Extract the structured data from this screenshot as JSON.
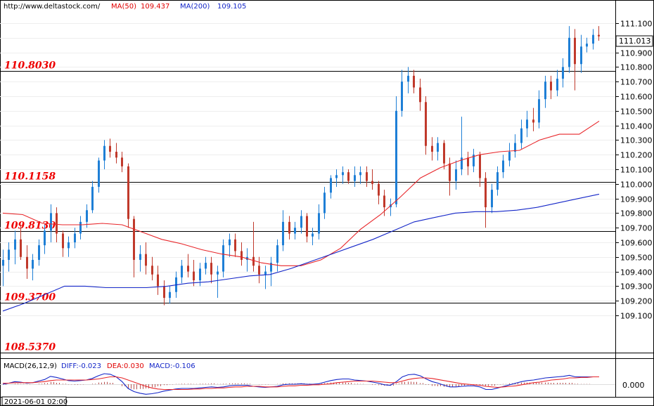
{
  "header": {
    "url": "http://www.deltastock.com/",
    "ma50_label": "MA(50)",
    "ma50_value": "109.437",
    "ma200_label": "MA(200)",
    "ma200_value": "109.105"
  },
  "colors": {
    "up": "#1e7fd6",
    "down": "#c0392b",
    "ma50": "#e8262a",
    "ma200": "#1426c8",
    "level_text": "#ee0000",
    "macd_hist": "#b85050"
  },
  "chart_data": [
    {
      "type": "candlestick",
      "title": "",
      "ylim": [
        109.03,
        111.17
      ],
      "yticks": [
        "111.100",
        "111.000",
        "110.900",
        "110.800",
        "110.700",
        "110.600",
        "110.500",
        "110.400",
        "110.300",
        "110.200",
        "110.100",
        "110.000",
        "109.900",
        "109.800",
        "109.700",
        "109.600",
        "109.500",
        "109.400",
        "109.300",
        "109.200",
        "109.100"
      ],
      "current_price": "111.013",
      "levels": [
        "110.8030",
        "110.1158",
        "109.8130",
        "109.3700",
        "108.5370"
      ],
      "series": [
        {
          "name": "MA(50)",
          "values": [
            109.8,
            109.79,
            109.73,
            109.72,
            109.72,
            109.73,
            109.72,
            109.67,
            109.62,
            109.59,
            109.55,
            109.52,
            109.5,
            109.46,
            109.44,
            109.44,
            109.48,
            109.56,
            109.69,
            109.79,
            109.91,
            110.04,
            110.11,
            110.16,
            110.2,
            110.22,
            110.23,
            110.3,
            110.34,
            110.34,
            110.43
          ]
        },
        {
          "name": "MA(200)",
          "values": [
            109.13,
            109.18,
            109.24,
            109.3,
            109.3,
            109.29,
            109.29,
            109.29,
            109.3,
            109.32,
            109.33,
            109.35,
            109.37,
            109.38,
            109.42,
            109.47,
            109.52,
            109.57,
            109.62,
            109.68,
            109.74,
            109.77,
            109.8,
            109.81,
            109.81,
            109.82,
            109.84,
            109.87,
            109.9,
            109.93
          ]
        }
      ],
      "candles_ohlc": [
        [
          109.44,
          109.55,
          109.3,
          109.48
        ],
        [
          109.48,
          109.6,
          109.4,
          109.55
        ],
        [
          109.55,
          109.68,
          109.45,
          109.62
        ],
        [
          109.62,
          109.72,
          109.48,
          109.5
        ],
        [
          109.5,
          109.58,
          109.35,
          109.42
        ],
        [
          109.42,
          109.52,
          109.34,
          109.48
        ],
        [
          109.48,
          109.62,
          109.44,
          109.58
        ],
        [
          109.58,
          109.72,
          109.52,
          109.68
        ],
        [
          109.68,
          109.86,
          109.6,
          109.8
        ],
        [
          109.8,
          109.84,
          109.6,
          109.66
        ],
        [
          109.66,
          109.68,
          109.5,
          109.56
        ],
        [
          109.56,
          109.64,
          109.5,
          109.6
        ],
        [
          109.6,
          109.7,
          109.56,
          109.66
        ],
        [
          109.66,
          109.78,
          109.62,
          109.74
        ],
        [
          109.74,
          109.86,
          109.7,
          109.82
        ],
        [
          109.82,
          110.02,
          109.8,
          109.98
        ],
        [
          109.98,
          110.18,
          109.94,
          110.16
        ],
        [
          110.16,
          110.3,
          110.1,
          110.26
        ],
        [
          110.26,
          110.31,
          110.18,
          110.22
        ],
        [
          110.22,
          110.28,
          110.14,
          110.18
        ],
        [
          110.18,
          110.22,
          110.08,
          110.12
        ],
        [
          110.12,
          110.14,
          109.7,
          109.76
        ],
        [
          109.76,
          109.78,
          109.36,
          109.48
        ],
        [
          109.48,
          109.58,
          109.4,
          109.52
        ],
        [
          109.52,
          109.6,
          109.38,
          109.44
        ],
        [
          109.44,
          109.5,
          109.34,
          109.38
        ],
        [
          109.38,
          109.44,
          109.24,
          109.3
        ],
        [
          109.3,
          109.34,
          109.17,
          109.22
        ],
        [
          109.22,
          109.3,
          109.18,
          109.26
        ],
        [
          109.26,
          109.4,
          109.22,
          109.36
        ],
        [
          109.36,
          109.48,
          109.32,
          109.44
        ],
        [
          109.44,
          109.52,
          109.36,
          109.4
        ],
        [
          109.4,
          109.48,
          109.3,
          109.34
        ],
        [
          109.34,
          109.46,
          109.3,
          109.42
        ],
        [
          109.42,
          109.5,
          109.38,
          109.46
        ],
        [
          109.46,
          109.5,
          109.32,
          109.38
        ],
        [
          109.38,
          109.44,
          109.22,
          109.4
        ],
        [
          109.4,
          109.62,
          109.36,
          109.58
        ],
        [
          109.58,
          109.66,
          109.5,
          109.62
        ],
        [
          109.62,
          109.66,
          109.5,
          109.54
        ],
        [
          109.54,
          109.6,
          109.44,
          109.48
        ],
        [
          109.48,
          109.56,
          109.4,
          109.5
        ],
        [
          109.5,
          109.74,
          109.4,
          109.44
        ],
        [
          109.44,
          109.5,
          109.32,
          109.38
        ],
        [
          109.38,
          109.44,
          109.28,
          109.4
        ],
        [
          109.4,
          109.5,
          109.3,
          109.46
        ],
        [
          109.46,
          109.62,
          109.4,
          109.58
        ],
        [
          109.58,
          109.82,
          109.54,
          109.74
        ],
        [
          109.74,
          109.78,
          109.62,
          109.66
        ],
        [
          109.66,
          109.74,
          109.62,
          109.7
        ],
        [
          109.7,
          109.82,
          109.66,
          109.78
        ],
        [
          109.78,
          109.8,
          109.6,
          109.64
        ],
        [
          109.64,
          109.7,
          109.58,
          109.66
        ],
        [
          109.66,
          109.86,
          109.62,
          109.8
        ],
        [
          109.8,
          109.98,
          109.76,
          109.94
        ],
        [
          109.94,
          110.06,
          109.9,
          110.04
        ],
        [
          110.04,
          110.1,
          109.98,
          110.06
        ],
        [
          110.06,
          110.12,
          110.0,
          110.08
        ],
        [
          110.08,
          110.1,
          110.0,
          110.02
        ],
        [
          110.02,
          110.12,
          109.98,
          110.06
        ],
        [
          110.06,
          110.12,
          110.0,
          110.08
        ],
        [
          110.08,
          110.12,
          109.98,
          110.02
        ],
        [
          110.02,
          110.1,
          109.96,
          110.0
        ],
        [
          110.0,
          110.02,
          109.86,
          109.92
        ],
        [
          109.92,
          109.96,
          109.78,
          109.84
        ],
        [
          109.84,
          109.9,
          109.78,
          109.86
        ],
        [
          109.86,
          110.6,
          109.84,
          110.5
        ],
        [
          110.5,
          110.78,
          110.46,
          110.7
        ],
        [
          110.7,
          110.8,
          110.62,
          110.74
        ],
        [
          110.74,
          110.78,
          110.62,
          110.66
        ],
        [
          110.66,
          110.72,
          110.5,
          110.56
        ],
        [
          110.56,
          110.6,
          110.2,
          110.26
        ],
        [
          110.26,
          110.32,
          110.16,
          110.22
        ],
        [
          110.22,
          110.32,
          110.16,
          110.28
        ],
        [
          110.28,
          110.3,
          110.1,
          110.14
        ],
        [
          110.14,
          110.18,
          109.92,
          110.02
        ],
        [
          110.02,
          110.16,
          109.96,
          110.1
        ],
        [
          110.1,
          110.46,
          110.06,
          110.18
        ],
        [
          110.18,
          110.22,
          110.06,
          110.12
        ],
        [
          110.12,
          110.24,
          110.08,
          110.2
        ],
        [
          110.2,
          110.22,
          109.98,
          110.04
        ],
        [
          110.04,
          110.08,
          109.7,
          109.84
        ],
        [
          109.84,
          110.0,
          109.8,
          109.96
        ],
        [
          109.96,
          110.12,
          109.92,
          110.08
        ],
        [
          110.08,
          110.2,
          110.04,
          110.16
        ],
        [
          110.16,
          110.28,
          110.12,
          110.22
        ],
        [
          110.22,
          110.34,
          110.18,
          110.28
        ],
        [
          110.28,
          110.44,
          110.24,
          110.38
        ],
        [
          110.38,
          110.5,
          110.32,
          110.44
        ],
        [
          110.44,
          110.52,
          110.36,
          110.42
        ],
        [
          110.42,
          110.64,
          110.38,
          110.58
        ],
        [
          110.58,
          110.74,
          110.52,
          110.7
        ],
        [
          110.7,
          110.74,
          110.58,
          110.64
        ],
        [
          110.64,
          110.78,
          110.6,
          110.72
        ],
        [
          110.72,
          110.86,
          110.66,
          110.8
        ],
        [
          110.8,
          111.08,
          110.76,
          111.0
        ],
        [
          111.0,
          111.06,
          110.64,
          110.82
        ],
        [
          110.82,
          111.02,
          110.76,
          110.94
        ],
        [
          110.94,
          111.0,
          110.9,
          110.96
        ],
        [
          110.96,
          111.06,
          110.92,
          111.02
        ],
        [
          111.02,
          111.08,
          110.98,
          111.01
        ]
      ]
    },
    {
      "type": "line",
      "title": "MACD(26,12,9)",
      "diff_label": "DIFF:-0.023",
      "dea_label": "DEA:0.030",
      "macd_label": "MACD:-0.106",
      "yticks": [
        "0.000"
      ],
      "ylim": [
        -0.22,
        0.22
      ],
      "series": [
        {
          "name": "DIFF",
          "values": [
            0.0,
            0.02,
            0.05,
            0.04,
            0.02,
            0.03,
            0.06,
            0.09,
            0.15,
            0.13,
            0.1,
            0.07,
            0.06,
            0.07,
            0.08,
            0.11,
            0.16,
            0.2,
            0.19,
            0.14,
            0.05,
            -0.08,
            -0.14,
            -0.17,
            -0.19,
            -0.18,
            -0.16,
            -0.13,
            -0.11,
            -0.09,
            -0.08,
            -0.08,
            -0.08,
            -0.07,
            -0.06,
            -0.05,
            -0.06,
            -0.05,
            -0.03,
            -0.02,
            -0.02,
            -0.02,
            -0.04,
            -0.05,
            -0.06,
            -0.05,
            -0.04,
            -0.01,
            0.0,
            0.0,
            0.01,
            0.0,
            0.0,
            0.01,
            0.04,
            0.07,
            0.09,
            0.1,
            0.1,
            0.08,
            0.07,
            0.06,
            0.04,
            0.02,
            -0.01,
            -0.02,
            0.05,
            0.14,
            0.18,
            0.19,
            0.16,
            0.1,
            0.05,
            0.02,
            -0.02,
            -0.05,
            -0.05,
            -0.04,
            -0.03,
            -0.03,
            -0.05,
            -0.1,
            -0.1,
            -0.07,
            -0.04,
            -0.01,
            0.02,
            0.05,
            0.07,
            0.08,
            0.1,
            0.12,
            0.13,
            0.14,
            0.15,
            0.17,
            0.14,
            0.14,
            0.14,
            0.14,
            0.14
          ]
        },
        {
          "name": "DEA",
          "values": [
            0.02,
            0.02,
            0.03,
            0.03,
            0.03,
            0.03,
            0.04,
            0.05,
            0.07,
            0.08,
            0.08,
            0.08,
            0.08,
            0.08,
            0.08,
            0.09,
            0.1,
            0.12,
            0.14,
            0.14,
            0.12,
            0.08,
            0.04,
            0.0,
            -0.04,
            -0.07,
            -0.09,
            -0.1,
            -0.1,
            -0.1,
            -0.1,
            -0.1,
            -0.09,
            -0.09,
            -0.08,
            -0.08,
            -0.07,
            -0.07,
            -0.06,
            -0.05,
            -0.05,
            -0.04,
            -0.04,
            -0.04,
            -0.05,
            -0.05,
            -0.05,
            -0.04,
            -0.03,
            -0.03,
            -0.02,
            -0.02,
            -0.01,
            -0.01,
            0.0,
            0.01,
            0.03,
            0.04,
            0.05,
            0.06,
            0.06,
            0.06,
            0.06,
            0.05,
            0.04,
            0.03,
            0.03,
            0.06,
            0.09,
            0.11,
            0.12,
            0.12,
            0.11,
            0.09,
            0.07,
            0.05,
            0.03,
            0.01,
            0.0,
            -0.01,
            -0.02,
            -0.04,
            -0.05,
            -0.06,
            -0.05,
            -0.04,
            -0.03,
            -0.01,
            0.01,
            0.03,
            0.04,
            0.06,
            0.08,
            0.09,
            0.1,
            0.12,
            0.12,
            0.13,
            0.13,
            0.14,
            0.14
          ]
        }
      ],
      "histogram": [
        -0.04,
        0.0,
        0.04,
        0.02,
        -0.02,
        0.0,
        0.04,
        0.08,
        0.16,
        0.1,
        0.04,
        -0.02,
        -0.04,
        -0.02,
        0.0,
        0.04,
        0.12,
        0.16,
        0.1,
        0.0,
        -0.14,
        -0.32,
        -0.36,
        -0.34,
        -0.3,
        -0.22,
        -0.14,
        -0.06,
        -0.02,
        0.02,
        0.04,
        0.04,
        0.02,
        0.04,
        0.04,
        0.06,
        0.02,
        0.04,
        0.06,
        0.06,
        0.06,
        0.04,
        0.0,
        -0.02,
        -0.02,
        0.0,
        0.02,
        0.06,
        0.06,
        0.06,
        0.06,
        0.04,
        0.02,
        0.04,
        0.08,
        0.12,
        0.12,
        0.12,
        0.1,
        0.04,
        0.02,
        0.0,
        -0.04,
        -0.06,
        -0.1,
        -0.1,
        0.04,
        0.16,
        0.18,
        0.16,
        0.08,
        -0.04,
        -0.12,
        -0.14,
        -0.18,
        -0.2,
        -0.16,
        -0.1,
        -0.06,
        -0.04,
        -0.06,
        -0.12,
        -0.1,
        -0.02,
        0.02,
        0.06,
        0.1,
        0.12,
        0.12,
        0.1,
        0.12,
        0.12,
        0.1,
        0.1,
        0.1,
        0.1,
        0.04,
        0.02,
        0.02,
        0.0,
        0.0
      ]
    }
  ],
  "footer": {
    "date_label": "2021-06-01 02:00"
  }
}
